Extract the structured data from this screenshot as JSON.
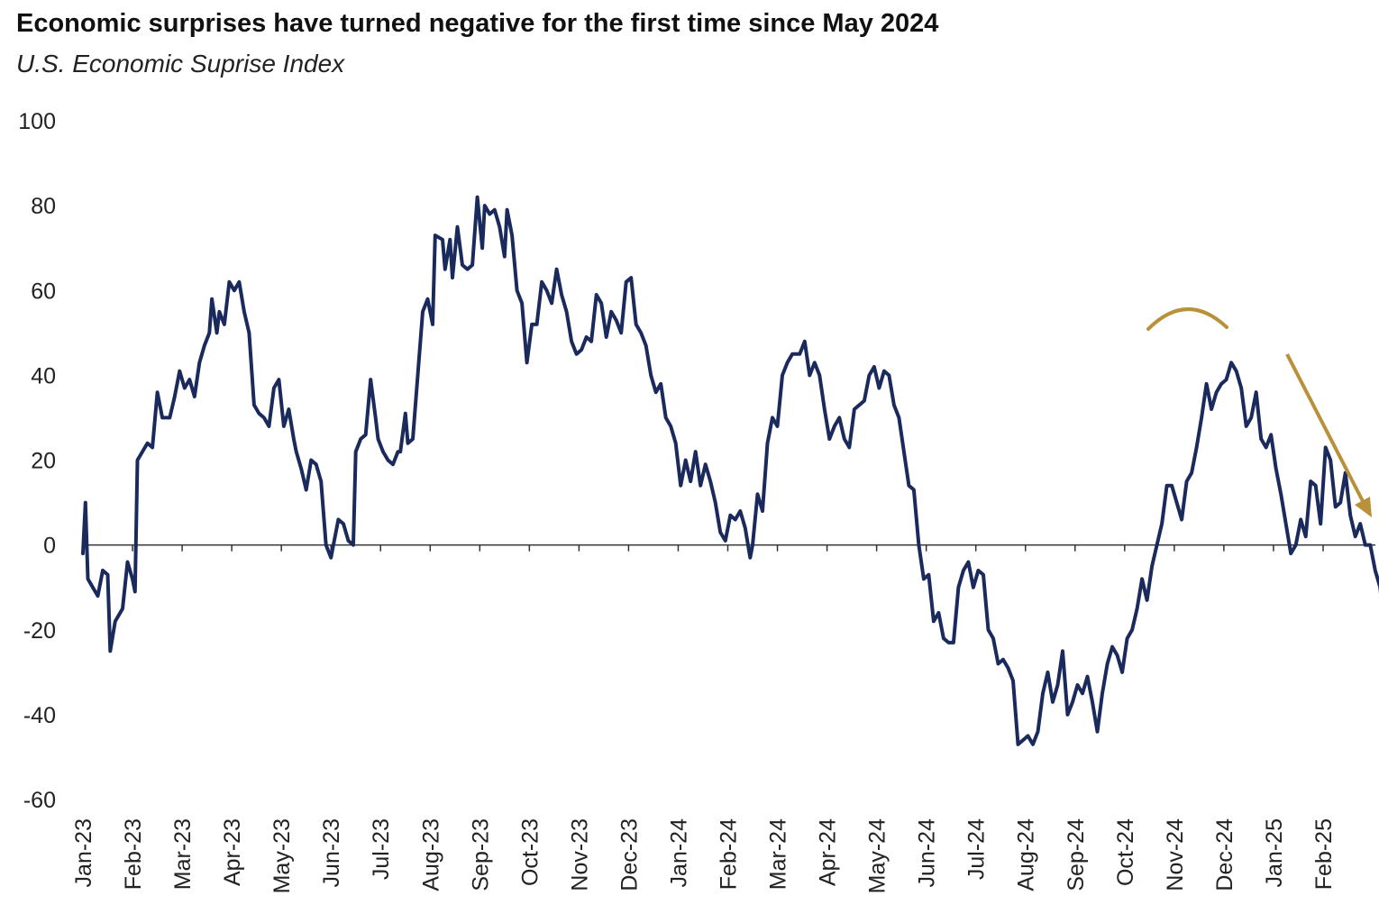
{
  "header": {
    "title": "Economic surprises have turned negative for the first time since May 2024",
    "subtitle": "U.S. Economic Suprise Index"
  },
  "colors": {
    "line": "#1b2a5c",
    "annotation": "#b8913a",
    "axis": "#333333"
  },
  "chart_data": {
    "type": "line",
    "title": "Economic surprises have turned negative for the first time since May 2024",
    "subtitle": "U.S. Economic Suprise Index",
    "xlabel": "",
    "ylabel": "",
    "ylim": [
      -60,
      100
    ],
    "yticks": [
      "100",
      "80",
      "60",
      "40",
      "20",
      "0",
      "-20",
      "-40",
      "-60"
    ],
    "ytick_values": [
      100,
      80,
      60,
      40,
      20,
      0,
      -20,
      -40,
      -60
    ],
    "categories": [
      "Jan-23",
      "Feb-23",
      "Mar-23",
      "Apr-23",
      "May-23",
      "Jun-23",
      "Jul-23",
      "Aug-23",
      "Sep-23",
      "Oct-23",
      "Nov-23",
      "Dec-23",
      "Jan-24",
      "Feb-24",
      "Mar-24",
      "Apr-24",
      "May-24",
      "Jun-24",
      "Jul-24",
      "Aug-24",
      "Sep-24",
      "Oct-24",
      "Nov-24",
      "Dec-24",
      "Jan-25",
      "Feb-25"
    ],
    "x_range": [
      0,
      25.8
    ],
    "grid": false,
    "legend": "none",
    "series": [
      {
        "points": [
          [
            0.0,
            -2
          ],
          [
            0.05,
            10
          ],
          [
            0.1,
            -8
          ],
          [
            0.2,
            -10
          ],
          [
            0.3,
            -12
          ],
          [
            0.4,
            -6
          ],
          [
            0.5,
            -7
          ],
          [
            0.55,
            -25
          ],
          [
            0.65,
            -18
          ],
          [
            0.8,
            -15
          ],
          [
            0.9,
            -4
          ],
          [
            1.0,
            -8
          ],
          [
            1.05,
            -11
          ],
          [
            1.1,
            20
          ],
          [
            1.2,
            22
          ],
          [
            1.3,
            24
          ],
          [
            1.4,
            23
          ],
          [
            1.5,
            36
          ],
          [
            1.6,
            30
          ],
          [
            1.75,
            30
          ],
          [
            1.85,
            35
          ],
          [
            1.95,
            41
          ],
          [
            2.05,
            37
          ],
          [
            2.15,
            39
          ],
          [
            2.25,
            35
          ],
          [
            2.35,
            43
          ],
          [
            2.45,
            47
          ],
          [
            2.55,
            50
          ],
          [
            2.6,
            58
          ],
          [
            2.7,
            50
          ],
          [
            2.75,
            55
          ],
          [
            2.85,
            52
          ],
          [
            2.95,
            62
          ],
          [
            3.05,
            60
          ],
          [
            3.15,
            62
          ],
          [
            3.25,
            55
          ],
          [
            3.35,
            50
          ],
          [
            3.45,
            33
          ],
          [
            3.55,
            31
          ],
          [
            3.65,
            30
          ],
          [
            3.75,
            28
          ],
          [
            3.85,
            37
          ],
          [
            3.95,
            39
          ],
          [
            4.05,
            28
          ],
          [
            4.15,
            32
          ],
          [
            4.25,
            25
          ],
          [
            4.3,
            22
          ],
          [
            4.4,
            18
          ],
          [
            4.5,
            13
          ],
          [
            4.6,
            20
          ],
          [
            4.7,
            19
          ],
          [
            4.8,
            15
          ],
          [
            4.9,
            0
          ],
          [
            5.0,
            -3
          ],
          [
            5.05,
            0
          ],
          [
            5.15,
            6
          ],
          [
            5.25,
            5
          ],
          [
            5.35,
            1
          ],
          [
            5.45,
            0
          ],
          [
            5.5,
            22
          ],
          [
            5.6,
            25
          ],
          [
            5.7,
            26
          ],
          [
            5.8,
            39
          ],
          [
            5.9,
            30
          ],
          [
            5.95,
            25
          ],
          [
            6.05,
            22
          ],
          [
            6.15,
            20
          ],
          [
            6.25,
            19
          ],
          [
            6.35,
            22
          ],
          [
            6.4,
            22
          ],
          [
            6.5,
            31
          ],
          [
            6.55,
            24
          ],
          [
            6.65,
            25
          ],
          [
            6.75,
            40
          ],
          [
            6.85,
            55
          ],
          [
            6.95,
            58
          ],
          [
            7.05,
            52
          ],
          [
            7.1,
            73
          ],
          [
            7.25,
            72
          ],
          [
            7.3,
            65
          ],
          [
            7.4,
            72
          ],
          [
            7.45,
            63
          ],
          [
            7.55,
            75
          ],
          [
            7.65,
            66
          ],
          [
            7.75,
            65
          ],
          [
            7.85,
            66
          ],
          [
            7.95,
            82
          ],
          [
            8.05,
            70
          ],
          [
            8.1,
            80
          ],
          [
            8.2,
            78
          ],
          [
            8.3,
            79
          ],
          [
            8.4,
            75
          ],
          [
            8.5,
            68
          ],
          [
            8.55,
            79
          ],
          [
            8.65,
            73
          ],
          [
            8.75,
            60
          ],
          [
            8.85,
            57
          ],
          [
            8.95,
            43
          ],
          [
            9.05,
            52
          ],
          [
            9.15,
            52
          ],
          [
            9.25,
            62
          ],
          [
            9.35,
            60
          ],
          [
            9.45,
            57
          ],
          [
            9.55,
            65
          ],
          [
            9.65,
            59
          ],
          [
            9.75,
            55
          ],
          [
            9.85,
            48
          ],
          [
            9.95,
            45
          ],
          [
            10.05,
            46
          ],
          [
            10.15,
            49
          ],
          [
            10.25,
            48
          ],
          [
            10.35,
            59
          ],
          [
            10.45,
            57
          ],
          [
            10.55,
            49
          ],
          [
            10.65,
            55
          ],
          [
            10.75,
            53
          ],
          [
            10.85,
            50
          ],
          [
            10.95,
            62
          ],
          [
            11.05,
            63
          ],
          [
            11.15,
            52
          ],
          [
            11.25,
            50
          ],
          [
            11.35,
            47
          ],
          [
            11.45,
            40
          ],
          [
            11.55,
            36
          ],
          [
            11.65,
            38
          ],
          [
            11.75,
            30
          ],
          [
            11.85,
            28
          ],
          [
            11.95,
            24
          ],
          [
            12.05,
            14
          ],
          [
            12.15,
            20
          ],
          [
            12.25,
            15
          ],
          [
            12.35,
            22
          ],
          [
            12.45,
            14
          ],
          [
            12.55,
            19
          ],
          [
            12.65,
            15
          ],
          [
            12.75,
            10
          ],
          [
            12.85,
            3
          ],
          [
            12.95,
            1
          ],
          [
            13.05,
            7
          ],
          [
            13.15,
            6
          ],
          [
            13.25,
            8
          ],
          [
            13.35,
            4
          ],
          [
            13.45,
            -3
          ],
          [
            13.5,
            0
          ],
          [
            13.6,
            12
          ],
          [
            13.7,
            8
          ],
          [
            13.8,
            24
          ],
          [
            13.9,
            30
          ],
          [
            14.0,
            28
          ],
          [
            14.1,
            40
          ],
          [
            14.2,
            43
          ],
          [
            14.3,
            45
          ],
          [
            14.45,
            45
          ],
          [
            14.55,
            48
          ],
          [
            14.65,
            40
          ],
          [
            14.75,
            43
          ],
          [
            14.85,
            40
          ],
          [
            14.95,
            32
          ],
          [
            15.05,
            25
          ],
          [
            15.15,
            28
          ],
          [
            15.25,
            30
          ],
          [
            15.35,
            25
          ],
          [
            15.45,
            23
          ],
          [
            15.55,
            32
          ],
          [
            15.65,
            33
          ],
          [
            15.75,
            34
          ],
          [
            15.85,
            40
          ],
          [
            15.95,
            42
          ],
          [
            16.05,
            37
          ],
          [
            16.15,
            41
          ],
          [
            16.25,
            40
          ],
          [
            16.35,
            33
          ],
          [
            16.45,
            30
          ],
          [
            16.55,
            22
          ],
          [
            16.65,
            14
          ],
          [
            16.75,
            13
          ],
          [
            16.85,
            0
          ],
          [
            16.95,
            -8
          ],
          [
            17.05,
            -7
          ],
          [
            17.15,
            -18
          ],
          [
            17.25,
            -16
          ],
          [
            17.35,
            -22
          ],
          [
            17.45,
            -23
          ],
          [
            17.55,
            -23
          ],
          [
            17.65,
            -10
          ],
          [
            17.75,
            -6
          ],
          [
            17.85,
            -4
          ],
          [
            17.95,
            -10
          ],
          [
            18.05,
            -6
          ],
          [
            18.15,
            -7
          ],
          [
            18.25,
            -20
          ],
          [
            18.35,
            -22
          ],
          [
            18.45,
            -28
          ],
          [
            18.55,
            -27
          ],
          [
            18.65,
            -29
          ],
          [
            18.75,
            -32
          ],
          [
            18.85,
            -47
          ],
          [
            18.95,
            -46
          ],
          [
            19.05,
            -45
          ],
          [
            19.15,
            -47
          ],
          [
            19.25,
            -44
          ],
          [
            19.35,
            -35
          ],
          [
            19.45,
            -30
          ],
          [
            19.55,
            -37
          ],
          [
            19.65,
            -33
          ],
          [
            19.75,
            -25
          ],
          [
            19.85,
            -40
          ],
          [
            19.95,
            -37
          ],
          [
            20.05,
            -33
          ],
          [
            20.15,
            -35
          ],
          [
            20.25,
            -31
          ],
          [
            20.35,
            -37
          ],
          [
            20.45,
            -44
          ],
          [
            20.55,
            -35
          ],
          [
            20.65,
            -28
          ],
          [
            20.75,
            -24
          ],
          [
            20.85,
            -26
          ],
          [
            20.95,
            -30
          ],
          [
            21.05,
            -22
          ],
          [
            21.15,
            -20
          ],
          [
            21.25,
            -15
          ],
          [
            21.35,
            -8
          ],
          [
            21.45,
            -13
          ],
          [
            21.55,
            -5
          ],
          [
            21.65,
            0
          ],
          [
            21.75,
            5
          ],
          [
            21.85,
            14
          ],
          [
            21.95,
            14
          ],
          [
            22.05,
            10
          ],
          [
            22.15,
            6
          ],
          [
            22.25,
            15
          ],
          [
            22.35,
            17
          ],
          [
            22.45,
            23
          ],
          [
            22.55,
            30
          ],
          [
            22.65,
            38
          ],
          [
            22.75,
            32
          ],
          [
            22.85,
            36
          ],
          [
            22.95,
            38
          ],
          [
            23.05,
            39
          ],
          [
            23.15,
            43
          ],
          [
            23.25,
            41
          ],
          [
            23.35,
            37
          ],
          [
            23.45,
            28
          ],
          [
            23.55,
            30
          ],
          [
            23.65,
            36
          ],
          [
            23.75,
            25
          ],
          [
            23.85,
            23
          ],
          [
            23.95,
            26
          ],
          [
            24.05,
            18
          ],
          [
            24.15,
            12
          ],
          [
            24.25,
            5
          ],
          [
            24.35,
            -2
          ],
          [
            24.45,
            0
          ],
          [
            24.55,
            6
          ],
          [
            24.65,
            2
          ],
          [
            24.75,
            15
          ],
          [
            24.85,
            14
          ],
          [
            24.95,
            5
          ],
          [
            25.05,
            23
          ],
          [
            25.15,
            20
          ],
          [
            25.25,
            9
          ],
          [
            25.35,
            10
          ],
          [
            25.45,
            17
          ],
          [
            25.55,
            7
          ],
          [
            25.65,
            2
          ],
          [
            25.75,
            5
          ],
          [
            25.85,
            0
          ],
          [
            25.95,
            0
          ],
          [
            26.05,
            -6
          ],
          [
            26.15,
            -10
          ],
          [
            26.2,
            -16
          ]
        ]
      }
    ]
  }
}
